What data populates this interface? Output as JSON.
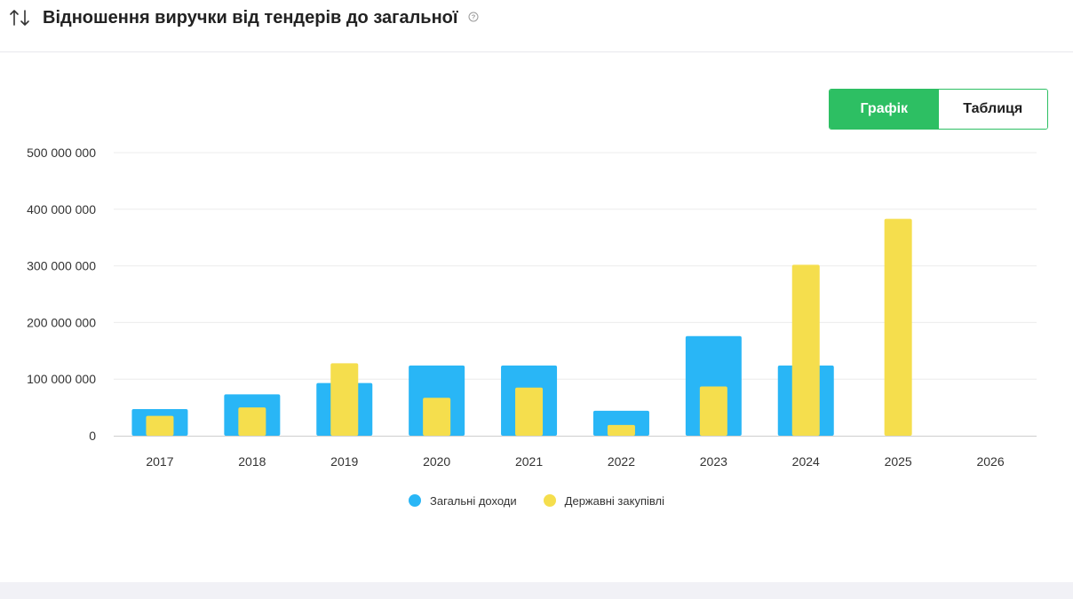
{
  "header": {
    "title": "Відношення виручки від тендерів до загальної",
    "sort_icon": "sort-arrows-icon",
    "help_icon": "question-circle-icon"
  },
  "toggle": {
    "chart_label": "Графік",
    "table_label": "Таблиця",
    "active": "chart"
  },
  "colors": {
    "accent": "#2dbf63",
    "series_total": "#29b6f6",
    "series_tenders": "#f5de4d",
    "grid": "#ececec",
    "axis_text": "#333333"
  },
  "chart_data": {
    "type": "bar",
    "title": "",
    "xlabel": "",
    "ylabel": "",
    "ylim": [
      0,
      500000000
    ],
    "yticks": [
      0,
      100000000,
      200000000,
      300000000,
      400000000,
      500000000
    ],
    "ytick_labels": [
      "0",
      "100 000 000",
      "200 000 000",
      "300 000 000",
      "400 000 000",
      "500 000 000"
    ],
    "categories": [
      "2017",
      "2018",
      "2019",
      "2020",
      "2021",
      "2022",
      "2023",
      "2024",
      "2025",
      "2026"
    ],
    "series": [
      {
        "name": "Загальні доходи",
        "values": [
          47000000,
          73000000,
          93000000,
          124000000,
          124000000,
          44000000,
          176000000,
          124000000,
          null,
          null
        ]
      },
      {
        "name": "Державні закупівлі",
        "values": [
          35000000,
          50000000,
          128000000,
          67000000,
          85000000,
          19000000,
          87000000,
          302000000,
          383000000,
          null
        ]
      }
    ],
    "grid": true,
    "legend_position": "bottom"
  }
}
